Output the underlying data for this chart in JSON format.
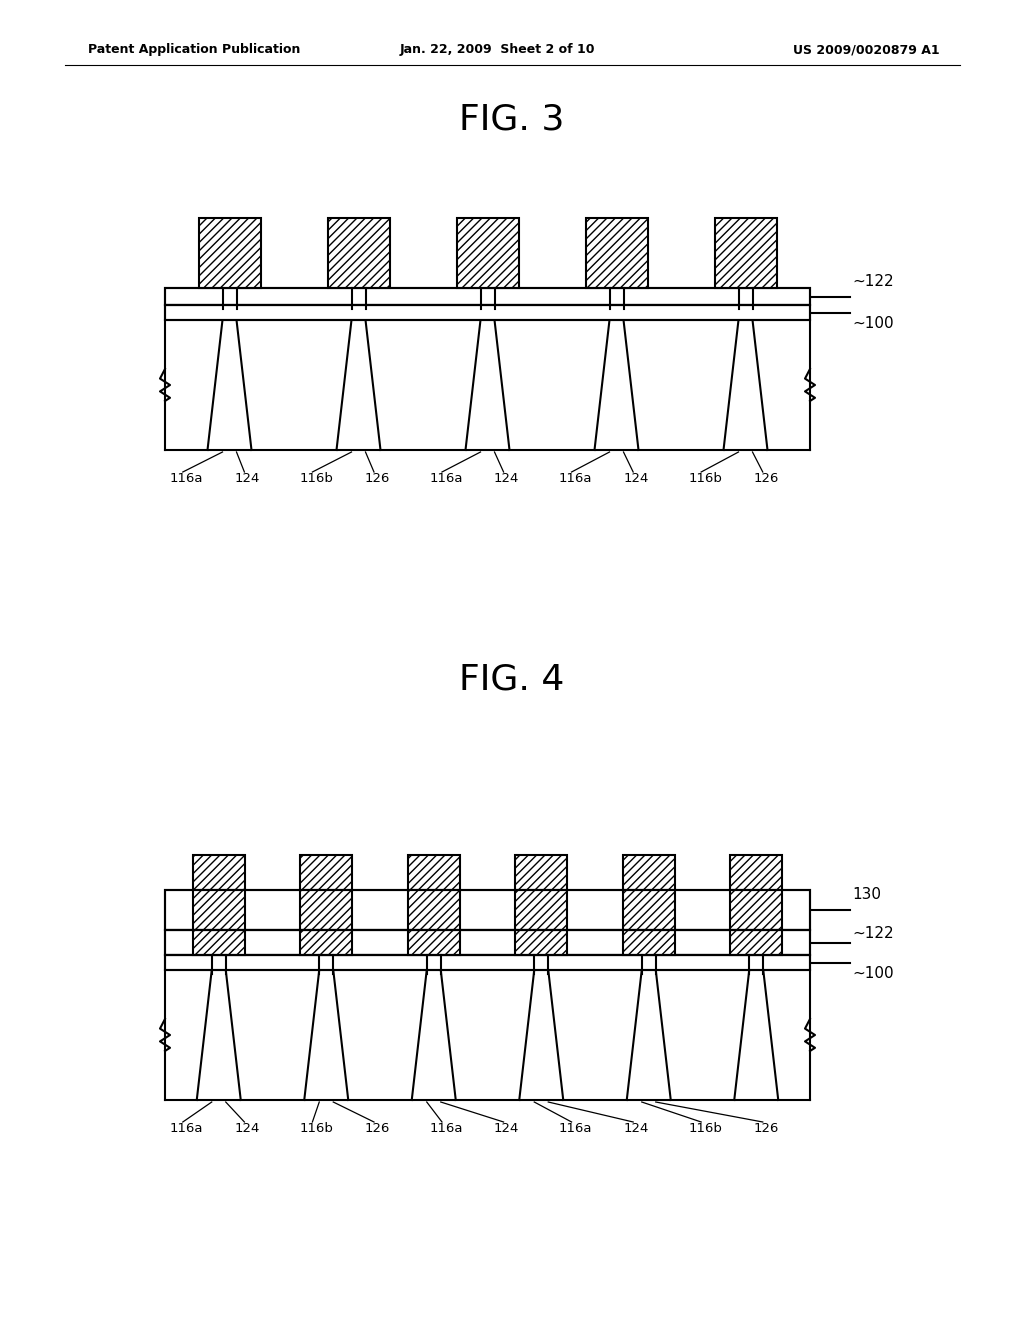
{
  "header_left": "Patent Application Publication",
  "header_mid": "Jan. 22, 2009  Sheet 2 of 10",
  "header_right": "US 2009/0020879 A1",
  "fig3_title": "FIG. 3",
  "fig4_title": "FIG. 4",
  "label_names": [
    "116a",
    "124",
    "116b",
    "126",
    "116a",
    "124",
    "116a",
    "124",
    "116b",
    "126"
  ],
  "fig3_ref": [
    "122",
    "100"
  ],
  "fig4_ref": [
    "130",
    "122",
    "100"
  ],
  "background_color": "#ffffff",
  "line_color": "#000000"
}
